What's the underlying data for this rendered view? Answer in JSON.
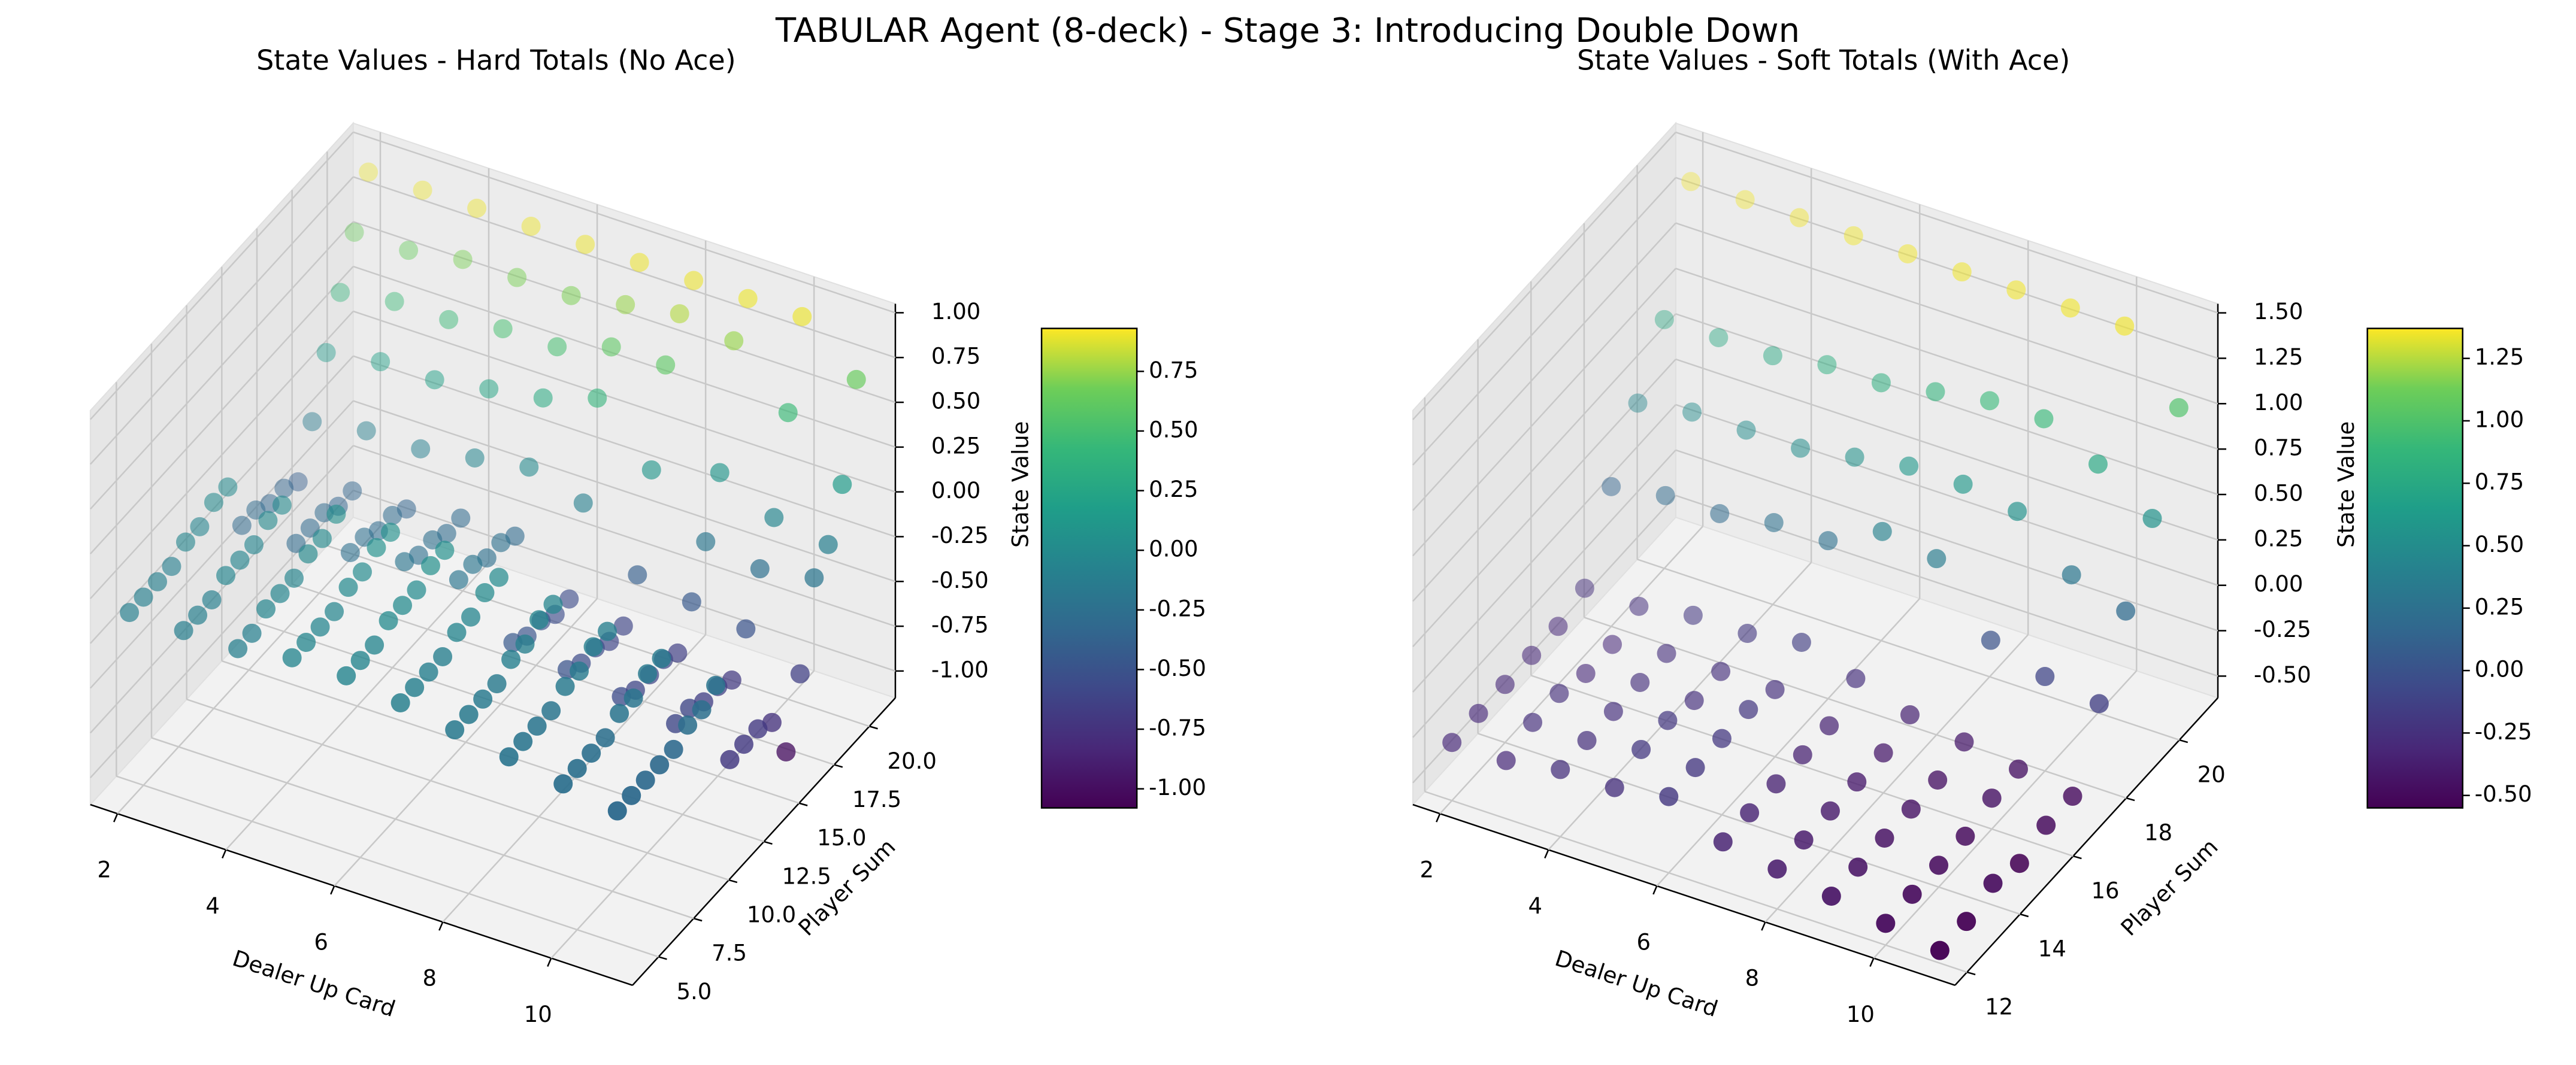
{
  "title": "TABULAR Agent (8-deck) - Stage 3: Introducing Double Down",
  "chart_data": [
    {
      "type": "scatter3d",
      "title": "State Values - Hard Totals (No Ace)",
      "xlabel": "Dealer Up Card",
      "ylabel": "Player Sum",
      "zlabel": "State Value",
      "colormap": "viridis",
      "x": [
        2,
        3,
        4,
        5,
        6,
        7,
        8,
        9,
        10,
        11
      ],
      "y": [
        4,
        5,
        6,
        7,
        8,
        9,
        10,
        11,
        12,
        13,
        14,
        15,
        16,
        17,
        18,
        19,
        20,
        21
      ],
      "values": [
        [
          -0.1,
          -0.1,
          -0.1,
          -0.05,
          -0.05,
          -0.1,
          -0.15,
          -0.2,
          -0.25,
          -0.3
        ],
        [
          -0.1,
          -0.1,
          -0.1,
          -0.05,
          -0.05,
          -0.1,
          -0.15,
          -0.2,
          -0.25,
          -0.3
        ],
        [
          -0.1,
          -0.1,
          -0.05,
          -0.05,
          -0.05,
          -0.1,
          -0.15,
          -0.2,
          -0.25,
          -0.3
        ],
        [
          -0.1,
          -0.05,
          -0.05,
          -0.05,
          0.0,
          -0.1,
          -0.15,
          -0.2,
          -0.25,
          -0.3
        ],
        [
          -0.05,
          -0.05,
          -0.05,
          0.0,
          0.0,
          -0.05,
          -0.1,
          -0.15,
          -0.2,
          -0.3
        ],
        [
          -0.05,
          -0.05,
          0.0,
          0.0,
          0.0,
          -0.05,
          -0.1,
          -0.15,
          -0.2,
          -0.25
        ],
        [
          0.0,
          0.0,
          0.0,
          0.05,
          0.05,
          0.0,
          -0.05,
          -0.1,
          -0.15,
          -0.25
        ],
        [
          0.0,
          0.0,
          0.05,
          0.05,
          0.05,
          0.0,
          -0.05,
          -0.1,
          -0.15,
          -0.2
        ],
        [
          -0.3,
          -0.3,
          -0.25,
          -0.2,
          -0.2,
          -0.45,
          -0.5,
          -0.55,
          -0.6,
          -0.7
        ],
        [
          -0.3,
          -0.3,
          -0.25,
          -0.25,
          -0.2,
          -0.5,
          -0.55,
          -0.6,
          -0.6,
          -0.7
        ],
        [
          -0.35,
          -0.3,
          -0.3,
          -0.25,
          -0.25,
          -0.5,
          -0.55,
          -0.6,
          -0.65,
          -0.7
        ],
        [
          -0.35,
          -0.35,
          -0.3,
          -0.3,
          -0.25,
          -0.55,
          -0.6,
          -0.6,
          -0.65,
          -0.75
        ],
        [
          -0.4,
          -0.35,
          -0.35,
          -0.3,
          -0.3,
          -0.55,
          -0.6,
          -0.65,
          -0.7,
          -1.0
        ],
        [
          -0.15,
          -0.1,
          -0.1,
          -0.05,
          0.0,
          -0.1,
          -0.4,
          -0.45,
          -0.5,
          -0.65
        ],
        [
          0.15,
          0.2,
          0.2,
          0.25,
          0.3,
          0.4,
          0.1,
          -0.2,
          -0.25,
          -0.2
        ],
        [
          0.4,
          0.45,
          0.45,
          0.5,
          0.5,
          0.6,
          0.6,
          0.1,
          -0.05,
          -0.1
        ],
        [
          0.65,
          0.65,
          0.7,
          0.7,
          0.7,
          0.75,
          0.8,
          0.75,
          0.45,
          0.15
        ],
        [
          0.9,
          0.9,
          0.9,
          0.9,
          0.9,
          0.9,
          0.9,
          0.9,
          0.9,
          0.65
        ]
      ],
      "xlim": [
        1.5,
        11.5
      ],
      "ylim": [
        3.15,
        21.85
      ],
      "zlim": [
        -1.15,
        1.05
      ],
      "xticks": [
        2,
        4,
        6,
        8,
        10
      ],
      "yticks": [
        {
          "value": 5,
          "label": "5.0"
        },
        {
          "value": 7.5,
          "label": "7.5"
        },
        {
          "value": 10,
          "label": "10.0"
        },
        {
          "value": 12.5,
          "label": "12.5"
        },
        {
          "value": 15,
          "label": "15.0"
        },
        {
          "value": 17.5,
          "label": "17.5"
        },
        {
          "value": 20,
          "label": "20.0"
        }
      ],
      "zticks": [
        {
          "value": -1,
          "label": "-1.00"
        },
        {
          "value": -0.75,
          "label": "-0.75"
        },
        {
          "value": -0.5,
          "label": "-0.50"
        },
        {
          "value": -0.25,
          "label": "-0.25"
        },
        {
          "value": 0,
          "label": "0.00"
        },
        {
          "value": 0.25,
          "label": "0.25"
        },
        {
          "value": 0.5,
          "label": "0.50"
        },
        {
          "value": 0.75,
          "label": "0.75"
        },
        {
          "value": 1,
          "label": "1.00"
        }
      ],
      "clim": [
        -1.08,
        0.93
      ],
      "cticks": [
        {
          "value": -1,
          "label": "-1.00"
        },
        {
          "value": -0.75,
          "label": "-0.75"
        },
        {
          "value": -0.5,
          "label": "-0.50"
        },
        {
          "value": -0.25,
          "label": "-0.25"
        },
        {
          "value": 0,
          "label": "0.00"
        },
        {
          "value": 0.25,
          "label": "0.25"
        },
        {
          "value": 0.5,
          "label": "0.50"
        },
        {
          "value": 0.75,
          "label": "0.75"
        }
      ]
    },
    {
      "type": "scatter3d",
      "title": "State Values - Soft Totals (With Ace)",
      "xlabel": "Dealer Up Card",
      "ylabel": "Player Sum",
      "zlabel": "State Value",
      "colormap": "viridis",
      "x": [
        2,
        3,
        4,
        5,
        6,
        7,
        8,
        9,
        10,
        11
      ],
      "y": [
        12,
        13,
        14,
        15,
        16,
        17,
        18,
        19,
        20,
        21
      ],
      "values": [
        [
          -0.3,
          -0.3,
          -0.25,
          -0.25,
          -0.2,
          -0.35,
          -0.4,
          -0.45,
          -0.5,
          -0.55
        ],
        [
          -0.3,
          -0.25,
          -0.25,
          -0.2,
          -0.2,
          -0.35,
          -0.4,
          -0.45,
          -0.5,
          -0.55
        ],
        [
          -0.3,
          -0.25,
          -0.25,
          -0.2,
          -0.2,
          -0.35,
          -0.4,
          -0.45,
          -0.5,
          -0.5
        ],
        [
          -0.3,
          -0.3,
          -0.25,
          -0.25,
          -0.2,
          -0.35,
          -0.4,
          -0.45,
          -0.5,
          -0.55
        ],
        [
          -0.3,
          -0.3,
          -0.25,
          -0.25,
          -0.25,
          -0.35,
          -0.4,
          -0.45,
          -0.45,
          -0.5
        ],
        [
          -0.25,
          -0.25,
          -0.2,
          -0.2,
          -0.15,
          -0.25,
          -0.35,
          -0.4,
          -0.45,
          -0.5
        ],
        [
          0.15,
          0.2,
          0.2,
          0.25,
          0.25,
          0.4,
          0.35,
          0.0,
          -0.1,
          -0.15
        ],
        [
          0.45,
          0.5,
          0.5,
          0.5,
          0.55,
          0.6,
          0.6,
          0.55,
          0.3,
          0.2
        ],
        [
          0.75,
          0.75,
          0.75,
          0.8,
          0.8,
          0.85,
          0.9,
          0.9,
          0.75,
          0.55
        ],
        [
          1.35,
          1.35,
          1.35,
          1.35,
          1.35,
          1.35,
          1.35,
          1.35,
          1.35,
          1.0
        ]
      ],
      "xlim": [
        1.5,
        11.5
      ],
      "ylim": [
        11.55,
        21.45
      ],
      "zlim": [
        -0.62,
        1.55
      ],
      "xticks": [
        2,
        4,
        6,
        8,
        10
      ],
      "yticks": [
        12,
        14,
        16,
        18,
        20
      ],
      "zticks": [
        {
          "value": -0.5,
          "label": "-0.50"
        },
        {
          "value": -0.25,
          "label": "-0.25"
        },
        {
          "value": 0,
          "label": "0.00"
        },
        {
          "value": 0.25,
          "label": "0.25"
        },
        {
          "value": 0.5,
          "label": "0.50"
        },
        {
          "value": 0.75,
          "label": "0.75"
        },
        {
          "value": 1,
          "label": "1.00"
        },
        {
          "value": 1.25,
          "label": "1.25"
        },
        {
          "value": 1.5,
          "label": "1.50"
        }
      ],
      "clim": [
        -0.55,
        1.37
      ],
      "cticks": [
        {
          "value": -0.5,
          "label": "-0.50"
        },
        {
          "value": -0.25,
          "label": "-0.25"
        },
        {
          "value": 0,
          "label": "0.00"
        },
        {
          "value": 0.25,
          "label": "0.25"
        },
        {
          "value": 0.5,
          "label": "0.50"
        },
        {
          "value": 0.75,
          "label": "0.75"
        },
        {
          "value": 1,
          "label": "1.00"
        },
        {
          "value": 1.25,
          "label": "1.25"
        }
      ]
    }
  ]
}
